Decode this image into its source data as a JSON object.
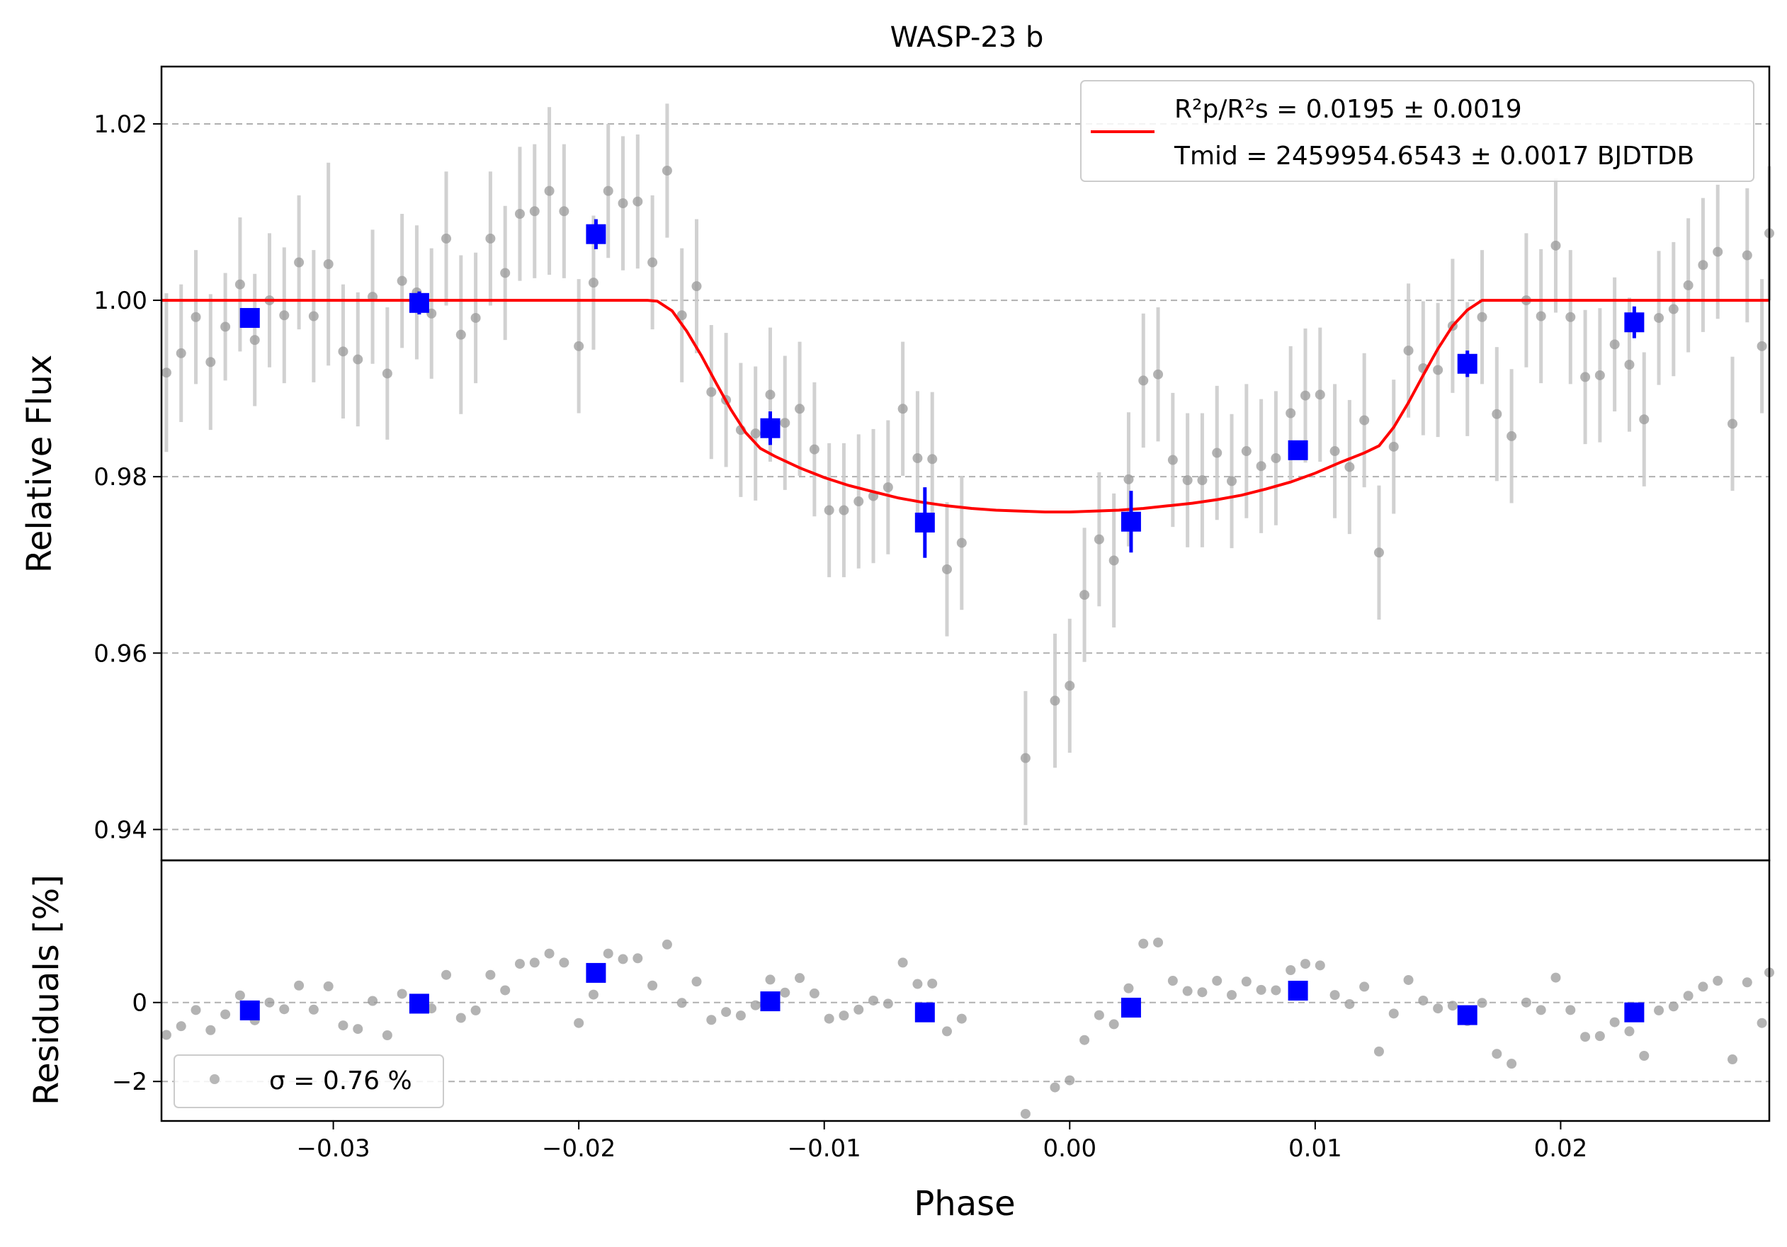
{
  "chart_data": {
    "type": "scatter",
    "title": "WASP-23 b",
    "xlabel": "Phase",
    "xlim": [
      -0.037,
      0.0285
    ],
    "xticks": [
      -0.03,
      -0.02,
      -0.01,
      0.0,
      0.01,
      0.02
    ],
    "xtick_labels": [
      "−0.03",
      "−0.02",
      "−0.01",
      "0.00",
      "0.01",
      "0.02"
    ],
    "panels": {
      "main": {
        "ylabel": "Relative Flux",
        "ylim": [
          0.9365,
          1.0265
        ],
        "yticks": [
          0.94,
          0.96,
          0.98,
          1.0,
          1.02
        ],
        "ytick_labels": [
          "0.94",
          "0.96",
          "0.98",
          "1.00",
          "1.02"
        ],
        "grid": "horizontal dashed",
        "legend": {
          "position": "top-right",
          "line1": "R²p/R²s = 0.0195 ± 0.0019",
          "line2": "Tmid = 2459954.6543 ± 0.0017 BJDTDB"
        }
      },
      "residuals": {
        "ylabel": "Residuals [%]",
        "ylim": [
          -3.0,
          3.6
        ],
        "yticks": [
          -2,
          0
        ],
        "ytick_labels": [
          "−2",
          "0"
        ],
        "grid": "horizontal dashed",
        "legend": {
          "position": "bottom-left",
          "label": "σ = 0.76 %"
        }
      }
    },
    "series": [
      {
        "name": "data",
        "color": "#9a9a9a",
        "errbar_color": "#cccccc",
        "points": [
          [
            -0.0368,
            0.9918,
            0.009
          ],
          [
            -0.0362,
            0.994,
            0.0078
          ],
          [
            -0.0356,
            0.9981,
            0.0076
          ],
          [
            -0.035,
            0.993,
            0.0077
          ],
          [
            -0.0344,
            0.997,
            0.0061
          ],
          [
            -0.0338,
            1.0018,
            0.0076
          ],
          [
            -0.0332,
            0.9955,
            0.0075
          ],
          [
            -0.0326,
            1.0,
            0.0076
          ],
          [
            -0.032,
            0.9983,
            0.0077
          ],
          [
            -0.0314,
            1.0043,
            0.0076
          ],
          [
            -0.0308,
            0.9982,
            0.0075
          ],
          [
            -0.0302,
            1.0041,
            0.0115
          ],
          [
            -0.0296,
            0.9942,
            0.0076
          ],
          [
            -0.029,
            0.9933,
            0.0076
          ],
          [
            -0.0284,
            1.0004,
            0.0076
          ],
          [
            -0.0278,
            0.9917,
            0.0075
          ],
          [
            -0.0272,
            1.0022,
            0.0076
          ],
          [
            -0.0266,
            1.0009,
            0.0076
          ],
          [
            -0.026,
            0.9985,
            0.0074
          ],
          [
            -0.0254,
            1.007,
            0.0076
          ],
          [
            -0.0248,
            0.9961,
            0.009
          ],
          [
            -0.0242,
            0.998,
            0.0074
          ],
          [
            -0.0236,
            1.007,
            0.0076
          ],
          [
            -0.023,
            1.0031,
            0.0076
          ],
          [
            -0.0224,
            1.0098,
            0.0076
          ],
          [
            -0.0218,
            1.0101,
            0.0076
          ],
          [
            -0.0212,
            1.0124,
            0.0095
          ],
          [
            -0.0206,
            1.0101,
            0.0076
          ],
          [
            -0.02,
            0.9948,
            0.0076
          ],
          [
            -0.0194,
            1.002,
            0.0076
          ],
          [
            -0.0188,
            1.0124,
            0.0076
          ],
          [
            -0.0182,
            1.011,
            0.0076
          ],
          [
            -0.0176,
            1.0112,
            0.0076
          ],
          [
            -0.017,
            1.0043,
            0.0076
          ],
          [
            -0.0164,
            1.0147,
            0.0076
          ],
          [
            -0.0158,
            0.9983,
            0.0076
          ],
          [
            -0.0152,
            1.0016,
            0.0076
          ],
          [
            -0.0146,
            0.9896,
            0.0076
          ],
          [
            -0.014,
            0.9887,
            0.0076
          ],
          [
            -0.0134,
            0.9853,
            0.0076
          ],
          [
            -0.0128,
            0.9849,
            0.0076
          ],
          [
            -0.0122,
            0.9893,
            0.0076
          ],
          [
            -0.0116,
            0.9861,
            0.0076
          ],
          [
            -0.011,
            0.9877,
            0.0076
          ],
          [
            -0.0104,
            0.9831,
            0.0076
          ],
          [
            -0.0098,
            0.9762,
            0.0076
          ],
          [
            -0.0092,
            0.9762,
            0.0076
          ],
          [
            -0.0086,
            0.9772,
            0.0076
          ],
          [
            -0.008,
            0.9778,
            0.0076
          ],
          [
            -0.0074,
            0.9788,
            0.0076
          ],
          [
            -0.0068,
            0.9877,
            0.0076
          ],
          [
            -0.0062,
            0.9821,
            0.0076
          ],
          [
            -0.0056,
            0.982,
            0.0076
          ],
          [
            -0.005,
            0.9695,
            0.0076
          ],
          [
            -0.0044,
            0.9725,
            0.0076
          ],
          [
            -0.0018,
            0.9481,
            0.0076
          ],
          [
            -0.0006,
            0.9546,
            0.0076
          ],
          [
            0.0,
            0.9563,
            0.0076
          ],
          [
            0.0006,
            0.9666,
            0.0076
          ],
          [
            0.0012,
            0.9729,
            0.0076
          ],
          [
            0.0018,
            0.9705,
            0.0076
          ],
          [
            0.0024,
            0.9797,
            0.0076
          ],
          [
            0.003,
            0.9909,
            0.0076
          ],
          [
            0.0036,
            0.9916,
            0.0076
          ],
          [
            0.0042,
            0.9819,
            0.0076
          ],
          [
            0.0048,
            0.9796,
            0.0076
          ],
          [
            0.0054,
            0.9796,
            0.0076
          ],
          [
            0.006,
            0.9827,
            0.0076
          ],
          [
            0.0066,
            0.9795,
            0.0076
          ],
          [
            0.0072,
            0.9829,
            0.0076
          ],
          [
            0.0078,
            0.9812,
            0.0076
          ],
          [
            0.0084,
            0.9821,
            0.0076
          ],
          [
            0.009,
            0.9872,
            0.0076
          ],
          [
            0.0096,
            0.9892,
            0.0076
          ],
          [
            0.0102,
            0.9893,
            0.0076
          ],
          [
            0.0108,
            0.9829,
            0.0076
          ],
          [
            0.0114,
            0.9811,
            0.0076
          ],
          [
            0.012,
            0.9864,
            0.0076
          ],
          [
            0.0126,
            0.9714,
            0.0076
          ],
          [
            0.0132,
            0.9834,
            0.0076
          ],
          [
            0.0138,
            0.9943,
            0.0076
          ],
          [
            0.0144,
            0.9923,
            0.0076
          ],
          [
            0.015,
            0.9921,
            0.0076
          ],
          [
            0.0156,
            0.9971,
            0.0076
          ],
          [
            0.0162,
            0.9922,
            0.0076
          ],
          [
            0.0168,
            0.9981,
            0.0076
          ],
          [
            0.0174,
            0.9871,
            0.0076
          ],
          [
            0.018,
            0.9846,
            0.0076
          ],
          [
            0.0186,
            1.0,
            0.0076
          ],
          [
            0.0192,
            0.9982,
            0.0076
          ],
          [
            0.0198,
            1.0062,
            0.0076
          ],
          [
            0.0204,
            0.9981,
            0.0076
          ],
          [
            0.021,
            0.9913,
            0.0076
          ],
          [
            0.0216,
            0.9915,
            0.0076
          ],
          [
            0.0222,
            0.995,
            0.0076
          ],
          [
            0.0228,
            0.9927,
            0.0076
          ],
          [
            0.0234,
            0.9865,
            0.0076
          ],
          [
            0.024,
            0.998,
            0.0076
          ],
          [
            0.0246,
            0.999,
            0.0076
          ],
          [
            0.0252,
            1.0017,
            0.0076
          ],
          [
            0.0258,
            1.004,
            0.0076
          ],
          [
            0.0264,
            1.0055,
            0.0076
          ],
          [
            0.027,
            0.986,
            0.0076
          ],
          [
            0.0276,
            1.0051,
            0.0076
          ],
          [
            0.0282,
            0.9948,
            0.0076
          ],
          [
            0.0285,
            1.0076,
            0.0076
          ]
        ]
      },
      {
        "name": "binned",
        "color": "#0000ff",
        "points": [
          [
            -0.0334,
            0.998,
            0.001
          ],
          [
            -0.0265,
            0.9997,
            0.0013
          ],
          [
            -0.0193,
            1.0075,
            0.0017
          ],
          [
            -0.0122,
            0.9855,
            0.0019
          ],
          [
            -0.0059,
            0.9748,
            0.004
          ],
          [
            0.0025,
            0.9749,
            0.0035
          ],
          [
            0.0093,
            0.983,
            0.0011
          ],
          [
            0.0162,
            0.9928,
            0.0015
          ],
          [
            0.023,
            0.9975,
            0.0018
          ]
        ]
      }
    ],
    "residual_points": [
      [
        -0.0368,
        -0.82
      ],
      [
        -0.0362,
        -0.6
      ],
      [
        -0.0356,
        -0.19
      ],
      [
        -0.035,
        -0.7
      ],
      [
        -0.0344,
        -0.3
      ],
      [
        -0.0338,
        0.18
      ],
      [
        -0.0332,
        -0.45
      ],
      [
        -0.0326,
        0.0
      ],
      [
        -0.032,
        -0.17
      ],
      [
        -0.0314,
        0.43
      ],
      [
        -0.0308,
        -0.18
      ],
      [
        -0.0302,
        0.41
      ],
      [
        -0.0296,
        -0.58
      ],
      [
        -0.029,
        -0.67
      ],
      [
        -0.0284,
        0.04
      ],
      [
        -0.0278,
        -0.83
      ],
      [
        -0.0272,
        0.22
      ],
      [
        -0.0266,
        0.09
      ],
      [
        -0.026,
        -0.15
      ],
      [
        -0.0254,
        0.7
      ],
      [
        -0.0248,
        -0.39
      ],
      [
        -0.0242,
        -0.2
      ],
      [
        -0.0236,
        0.7
      ],
      [
        -0.023,
        0.31
      ],
      [
        -0.0224,
        0.98
      ],
      [
        -0.0218,
        1.01
      ],
      [
        -0.0212,
        1.24
      ],
      [
        -0.0206,
        1.01
      ],
      [
        -0.02,
        -0.52
      ],
      [
        -0.0194,
        0.2
      ],
      [
        -0.0188,
        1.24
      ],
      [
        -0.0182,
        1.1
      ],
      [
        -0.0176,
        1.12
      ],
      [
        -0.017,
        0.43
      ],
      [
        -0.0164,
        1.47
      ],
      [
        -0.0158,
        -0.01
      ],
      [
        -0.0152,
        0.53
      ],
      [
        -0.0146,
        -0.44
      ],
      [
        -0.014,
        -0.24
      ],
      [
        -0.0134,
        -0.33
      ],
      [
        -0.0128,
        -0.07
      ],
      [
        -0.0122,
        0.58
      ],
      [
        -0.0116,
        0.25
      ],
      [
        -0.011,
        0.62
      ],
      [
        -0.0104,
        0.23
      ],
      [
        -0.0098,
        -0.41
      ],
      [
        -0.0092,
        -0.33
      ],
      [
        -0.0086,
        -0.18
      ],
      [
        -0.008,
        0.05
      ],
      [
        -0.0074,
        -0.03
      ],
      [
        -0.0068,
        1.01
      ],
      [
        -0.0062,
        0.47
      ],
      [
        -0.0056,
        0.48
      ],
      [
        -0.005,
        -0.73
      ],
      [
        -0.0044,
        -0.41
      ],
      [
        -0.0018,
        -2.82
      ],
      [
        -0.0006,
        -2.15
      ],
      [
        0.0,
        -1.97
      ],
      [
        0.0006,
        -0.95
      ],
      [
        0.0012,
        -0.32
      ],
      [
        0.0018,
        -0.55
      ],
      [
        0.0024,
        0.36
      ],
      [
        0.003,
        1.49
      ],
      [
        0.0036,
        1.52
      ],
      [
        0.0042,
        0.55
      ],
      [
        0.0048,
        0.29
      ],
      [
        0.0054,
        0.26
      ],
      [
        0.006,
        0.55
      ],
      [
        0.0066,
        0.19
      ],
      [
        0.0072,
        0.53
      ],
      [
        0.0078,
        0.32
      ],
      [
        0.0084,
        0.31
      ],
      [
        0.009,
        0.82
      ],
      [
        0.0096,
        0.98
      ],
      [
        0.0102,
        0.94
      ],
      [
        0.0108,
        0.19
      ],
      [
        0.0114,
        -0.04
      ],
      [
        0.012,
        0.4
      ],
      [
        0.0126,
        -1.24
      ],
      [
        0.0132,
        -0.28
      ],
      [
        0.0138,
        0.57
      ],
      [
        0.0144,
        0.05
      ],
      [
        0.015,
        -0.15
      ],
      [
        0.0156,
        -0.08
      ],
      [
        0.0162,
        -0.47
      ],
      [
        0.0168,
        -0.01
      ],
      [
        0.0174,
        -1.3
      ],
      [
        0.018,
        -1.55
      ],
      [
        0.0186,
        0.0
      ],
      [
        0.0192,
        -0.19
      ],
      [
        0.0198,
        0.63
      ],
      [
        0.0204,
        -0.19
      ],
      [
        0.021,
        -0.87
      ],
      [
        0.0216,
        -0.85
      ],
      [
        0.0222,
        -0.5
      ],
      [
        0.0228,
        -0.73
      ],
      [
        0.0234,
        -1.35
      ],
      [
        0.024,
        -0.2
      ],
      [
        0.0246,
        -0.1
      ],
      [
        0.0252,
        0.17
      ],
      [
        0.0258,
        0.4
      ],
      [
        0.0264,
        0.55
      ],
      [
        0.027,
        -1.44
      ],
      [
        0.0276,
        0.51
      ],
      [
        0.0282,
        -0.52
      ],
      [
        0.0285,
        0.76
      ]
    ],
    "residual_binned": [
      [
        -0.0334,
        -0.2
      ],
      [
        -0.0265,
        -0.03
      ],
      [
        -0.0193,
        0.75
      ],
      [
        -0.0122,
        0.03
      ],
      [
        -0.0059,
        -0.25
      ],
      [
        0.0025,
        -0.13
      ],
      [
        0.0093,
        0.3
      ],
      [
        0.0162,
        -0.32
      ],
      [
        0.023,
        -0.25
      ]
    ],
    "model": {
      "name": "transit model",
      "color": "#ff0000",
      "points": [
        [
          -0.037,
          1.0
        ],
        [
          -0.0172,
          1.0
        ],
        [
          -0.0168,
          0.9999
        ],
        [
          -0.0162,
          0.9988
        ],
        [
          -0.0156,
          0.9965
        ],
        [
          -0.015,
          0.9937
        ],
        [
          -0.0144,
          0.9906
        ],
        [
          -0.0138,
          0.9876
        ],
        [
          -0.0132,
          0.985
        ],
        [
          -0.0126,
          0.9832
        ],
        [
          -0.012,
          0.9823
        ],
        [
          -0.011,
          0.981
        ],
        [
          -0.01,
          0.9799
        ],
        [
          -0.009,
          0.979
        ],
        [
          -0.008,
          0.9783
        ],
        [
          -0.007,
          0.9776
        ],
        [
          -0.006,
          0.9771
        ],
        [
          -0.005,
          0.9767
        ],
        [
          -0.004,
          0.9764
        ],
        [
          -0.003,
          0.9762
        ],
        [
          -0.002,
          0.9761
        ],
        [
          -0.001,
          0.976
        ],
        [
          0.0,
          0.976
        ],
        [
          0.001,
          0.9761
        ],
        [
          0.002,
          0.9762
        ],
        [
          0.003,
          0.9764
        ],
        [
          0.004,
          0.9767
        ],
        [
          0.005,
          0.977
        ],
        [
          0.006,
          0.9774
        ],
        [
          0.007,
          0.9779
        ],
        [
          0.008,
          0.9786
        ],
        [
          0.009,
          0.9794
        ],
        [
          0.01,
          0.9804
        ],
        [
          0.011,
          0.9816
        ],
        [
          0.012,
          0.9827
        ],
        [
          0.0126,
          0.9835
        ],
        [
          0.0132,
          0.9856
        ],
        [
          0.0138,
          0.9884
        ],
        [
          0.0144,
          0.9915
        ],
        [
          0.015,
          0.9945
        ],
        [
          0.0156,
          0.9971
        ],
        [
          0.0162,
          0.9989
        ],
        [
          0.0168,
          1.0
        ],
        [
          0.0285,
          1.0
        ]
      ]
    }
  }
}
